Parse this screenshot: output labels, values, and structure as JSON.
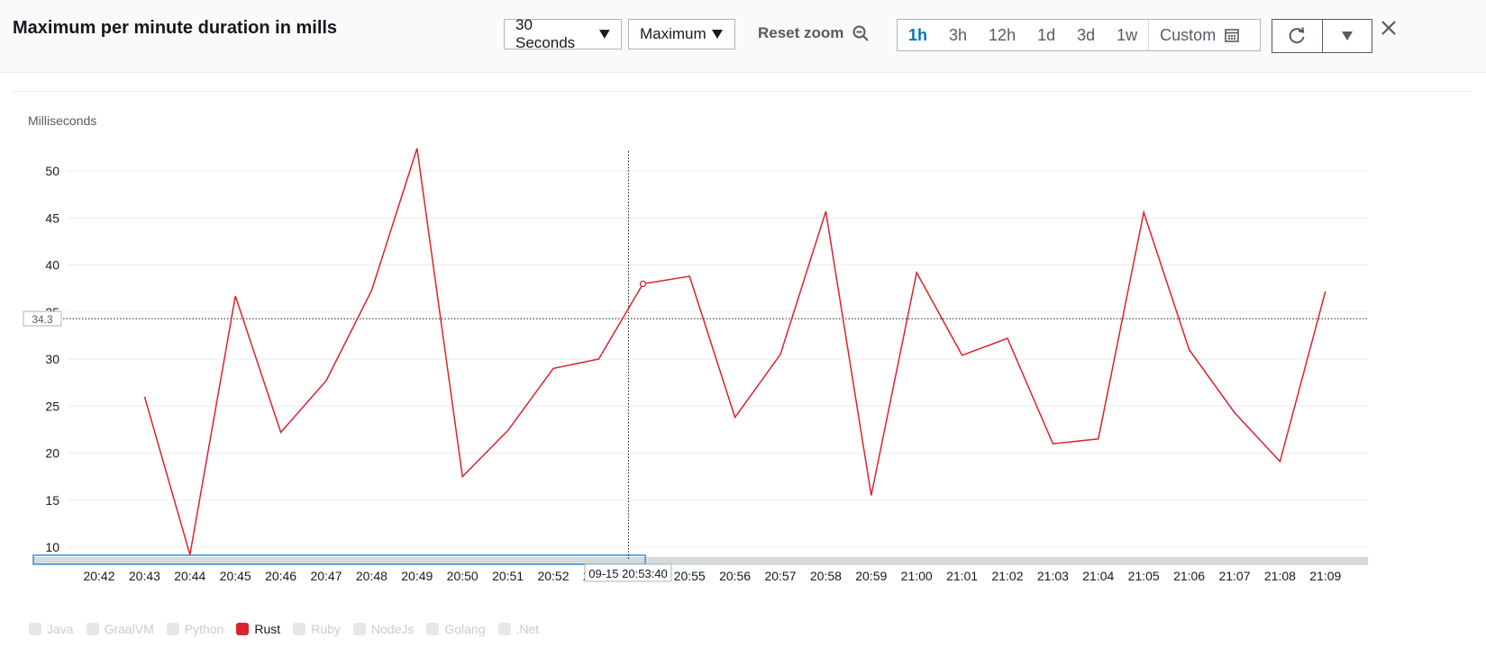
{
  "header": {
    "title": "Maximum per minute duration in mills",
    "period_label": "30 Seconds",
    "statistic_label": "Maximum",
    "reset_zoom_label": "Reset zoom",
    "ranges": [
      {
        "label": "1h",
        "active": true
      },
      {
        "label": "3h",
        "active": false
      },
      {
        "label": "12h",
        "active": false
      },
      {
        "label": "1d",
        "active": false
      },
      {
        "label": "3d",
        "active": false
      },
      {
        "label": "1w",
        "active": false
      }
    ],
    "custom_label": "Custom",
    "icons": {
      "caret": "caret-down-icon",
      "zoom": "zoom-out-icon",
      "calendar": "calendar-icon",
      "refresh": "refresh-icon",
      "close": "close-icon"
    }
  },
  "chart_data": {
    "type": "line",
    "ylabel": "Milliseconds",
    "ylim": [
      9,
      56
    ],
    "yticks": [
      10,
      15,
      20,
      25,
      30,
      35,
      40,
      45,
      50
    ],
    "categories": [
      "20:42",
      "20:43",
      "20:44",
      "20:45",
      "20:46",
      "20:47",
      "20:48",
      "20:49",
      "20:50",
      "20:51",
      "20:52",
      "20:53",
      "20:54",
      "20:55",
      "20:56",
      "20:57",
      "20:58",
      "20:59",
      "21:00",
      "21:01",
      "21:02",
      "21:03",
      "21:04",
      "21:05",
      "21:06",
      "21:07",
      "21:08",
      "21:09"
    ],
    "series": [
      {
        "name": "Rust",
        "color": "#d9232e",
        "values": [
          null,
          26.0,
          9.2,
          36.7,
          22.2,
          27.7,
          37.3,
          52.4,
          17.5,
          22.4,
          29.0,
          30.0,
          null,
          38.8,
          23.8,
          30.5,
          45.7,
          15.5,
          39.2,
          30.4,
          32.2,
          21.0,
          21.5,
          45.6,
          31.0,
          24.3,
          19.1,
          37.2
        ]
      }
    ],
    "hover": {
      "y_value_label": "34.3",
      "y_value": 34.3,
      "x_label": "09-15 20:53:40",
      "x_value": "20:53:40",
      "point_value": 38.0
    },
    "legend": [
      {
        "name": "Java",
        "enabled": false
      },
      {
        "name": "GraalVM",
        "enabled": false
      },
      {
        "name": "Python",
        "enabled": false
      },
      {
        "name": "Rust",
        "enabled": true,
        "color": "#d9232e"
      },
      {
        "name": "Ruby",
        "enabled": false
      },
      {
        "name": "NodeJs",
        "enabled": false
      },
      {
        "name": "Golang",
        "enabled": false
      },
      {
        "name": ".Net",
        "enabled": false
      }
    ],
    "legend_position": "bottom-left",
    "grid": true
  }
}
